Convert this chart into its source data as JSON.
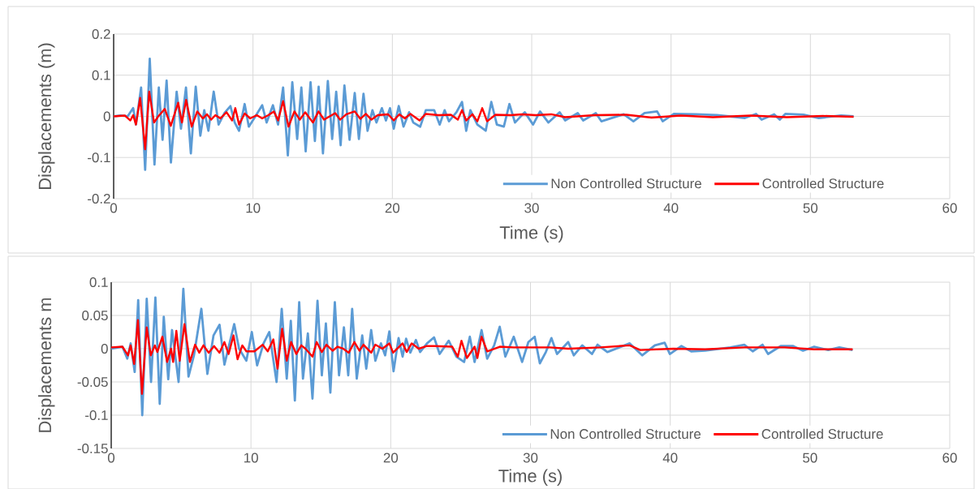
{
  "chart_data": [
    {
      "type": "line",
      "xlabel": "Time (s)",
      "ylabel": "Displacements (m)",
      "xlim": [
        0,
        60
      ],
      "ylim": [
        -0.2,
        0.2
      ],
      "xticks": [
        0,
        10,
        20,
        30,
        40,
        50,
        60
      ],
      "yticks": [
        -0.2,
        -0.1,
        0,
        0.1,
        0.2
      ],
      "grid": true,
      "legend": "bottom",
      "series": [
        {
          "name": "Non Controlled Structure",
          "color": "#5b9bd5",
          "x": [
            0,
            0.5,
            1.0,
            1.4,
            1.6,
            1.97,
            2.26,
            2.59,
            2.93,
            3.24,
            3.51,
            3.8,
            4.11,
            4.52,
            4.83,
            5.19,
            5.54,
            5.89,
            6.22,
            6.5,
            6.8,
            7.18,
            7.53,
            7.95,
            8.38,
            8.69,
            9.0,
            9.4,
            9.7,
            10.17,
            10.66,
            10.98,
            11.43,
            11.8,
            12.16,
            12.5,
            12.82,
            13.17,
            13.47,
            13.78,
            14.13,
            14.44,
            14.71,
            15.02,
            15.37,
            15.68,
            15.97,
            16.29,
            16.56,
            16.93,
            17.3,
            17.6,
            17.93,
            18.22,
            18.57,
            18.86,
            19.25,
            19.54,
            19.83,
            20.1,
            20.46,
            20.8,
            21.2,
            21.5,
            22.0,
            22.4,
            23.0,
            23.4,
            23.75,
            24.06,
            24.6,
            25.0,
            25.3,
            25.6,
            26.1,
            26.7,
            27.1,
            27.5,
            28.0,
            28.4,
            28.8,
            29.5,
            30.1,
            30.6,
            31.2,
            32.0,
            32.4,
            33.3,
            33.7,
            34.6,
            35.0,
            36.6,
            37.3,
            38.1,
            39.0,
            39.4,
            40.2,
            41.8,
            43.3,
            45.3,
            46.1,
            46.5,
            47.4,
            47.8,
            48.2,
            49.5,
            50.6,
            52.2,
            53.1
          ],
          "values": [
            0,
            0.002,
            0,
            0.02,
            -0.02,
            0.07,
            -0.13,
            0.14,
            -0.117,
            0.07,
            -0.057,
            0.087,
            -0.112,
            0.06,
            -0.03,
            0.07,
            -0.09,
            0.072,
            -0.047,
            0.015,
            -0.035,
            0.06,
            -0.02,
            0.008,
            0.025,
            -0.015,
            -0.035,
            0.03,
            -0.025,
            0,
            0.027,
            -0.015,
            0.027,
            -0.02,
            0.07,
            -0.095,
            0.083,
            -0.055,
            0.07,
            -0.085,
            0.083,
            -0.06,
            0.072,
            -0.09,
            0.086,
            -0.055,
            0.06,
            -0.07,
            0.075,
            -0.057,
            0.057,
            -0.055,
            0.055,
            -0.035,
            0.015,
            -0.015,
            0.02,
            -0.01,
            0.02,
            -0.03,
            0.025,
            -0.025,
            0.01,
            -0.015,
            -0.025,
            0.015,
            0.015,
            -0.02,
            0.015,
            -0.012,
            0.01,
            0.035,
            -0.035,
            0.015,
            -0.02,
            -0.035,
            0.035,
            -0.02,
            -0.025,
            0.03,
            -0.015,
            0.01,
            -0.02,
            0.012,
            -0.015,
            0.01,
            -0.01,
            0.008,
            -0.01,
            0.008,
            -0.012,
            0.005,
            -0.012,
            0.008,
            0.012,
            -0.012,
            0.006,
            0.005,
            0.003,
            -0.004,
            0.006,
            -0.008,
            0.005,
            -0.008,
            0.006,
            0.004,
            -0.004,
            0.002,
            0
          ]
        },
        {
          "name": "Controlled Structure",
          "color": "#ff0000",
          "x": [
            0,
            0.8,
            1.2,
            1.4,
            1.6,
            1.9,
            2.26,
            2.55,
            2.9,
            3.2,
            3.67,
            4.1,
            4.63,
            4.9,
            5.2,
            5.6,
            6.0,
            6.4,
            6.7,
            7.0,
            7.3,
            7.66,
            8.1,
            8.5,
            8.73,
            9.0,
            9.4,
            9.8,
            10.27,
            10.66,
            11.1,
            11.5,
            11.8,
            12.16,
            12.55,
            12.97,
            13.36,
            13.75,
            14.3,
            14.7,
            15.1,
            15.9,
            16.25,
            16.7,
            17.3,
            17.7,
            18.1,
            18.5,
            18.95,
            19.7,
            20.1,
            20.5,
            20.9,
            21.3,
            21.95,
            22.4,
            23.3,
            24.2,
            24.7,
            25.0,
            25.3,
            25.75,
            26.1,
            26.45,
            26.8,
            27.4,
            28.5,
            29.3,
            30.3,
            31.4,
            32.4,
            34.5,
            36.8,
            38.6,
            40.7,
            43.0,
            45.7,
            48.3,
            50.9,
            53.1
          ],
          "values": [
            0,
            0.002,
            -0.01,
            0.003,
            -0.02,
            0.045,
            -0.08,
            0.06,
            -0.015,
            0,
            0.018,
            -0.023,
            0.033,
            -0.015,
            0.04,
            -0.025,
            0.012,
            -0.005,
            0.005,
            -0.008,
            0.003,
            -0.005,
            0.01,
            -0.01,
            0.02,
            -0.02,
            0.007,
            -0.005,
            0.003,
            -0.005,
            0.003,
            0.012,
            -0.01,
            0.037,
            -0.025,
            0.012,
            -0.008,
            0.01,
            -0.015,
            0.012,
            -0.008,
            0.008,
            -0.008,
            0.005,
            0.012,
            -0.006,
            0.006,
            -0.008,
            0.003,
            0.005,
            -0.01,
            0.005,
            -0.005,
            0.006,
            -0.01,
            0.006,
            0.003,
            0.004,
            -0.008,
            0.015,
            -0.01,
            0.005,
            -0.012,
            0.02,
            -0.012,
            0.004,
            0.003,
            0.005,
            0.003,
            0.005,
            -0.002,
            0.003,
            0.004,
            -0.003,
            0.002,
            -0.002,
            0.002,
            -0.002,
            0.001,
            -0.001
          ]
        }
      ]
    },
    {
      "type": "line",
      "xlabel": "Time (s)",
      "ylabel": "Displacements m",
      "xlim": [
        0,
        60
      ],
      "ylim": [
        -0.15,
        0.1
      ],
      "xticks": [
        0,
        10,
        20,
        30,
        40,
        50,
        60
      ],
      "yticks": [
        -0.15,
        -0.1,
        -0.05,
        0,
        0.05,
        0.1
      ],
      "grid": true,
      "legend": "bottom",
      "series": [
        {
          "name": "Non Controlled Structure",
          "color": "#5b9bd5",
          "x": [
            0,
            0.8,
            1.15,
            1.39,
            1.68,
            1.93,
            2.22,
            2.54,
            2.85,
            3.16,
            3.47,
            3.76,
            4.08,
            4.35,
            4.82,
            5.16,
            5.53,
            5.92,
            6.45,
            6.88,
            7.32,
            7.75,
            8.1,
            8.8,
            9.15,
            9.67,
            10.06,
            10.44,
            10.9,
            11.31,
            11.83,
            12.2,
            12.56,
            12.85,
            13.14,
            13.45,
            13.72,
            14.07,
            14.4,
            14.76,
            15.07,
            15.36,
            15.68,
            16.0,
            16.3,
            16.65,
            16.96,
            17.24,
            17.57,
            17.96,
            18.25,
            18.6,
            18.9,
            19.3,
            19.6,
            19.9,
            20.2,
            20.56,
            20.85,
            21.1,
            21.4,
            21.8,
            22.1,
            22.6,
            23.1,
            23.5,
            24.15,
            24.7,
            25.25,
            25.66,
            26.0,
            26.5,
            26.9,
            27.4,
            27.8,
            28.2,
            28.8,
            29.4,
            29.85,
            30.3,
            30.67,
            31.1,
            31.5,
            31.9,
            32.7,
            33.1,
            33.7,
            34.4,
            34.8,
            35.5,
            37.1,
            38.0,
            38.9,
            39.6,
            39.97,
            40.8,
            41.5,
            42.5,
            44.3,
            45.3,
            45.9,
            46.6,
            47.0,
            47.9,
            48.8,
            49.5,
            50.3,
            51.3,
            52.1,
            53.05
          ],
          "values": [
            0,
            0.003,
            -0.015,
            0.008,
            -0.035,
            0.073,
            -0.1,
            0.075,
            -0.05,
            0.077,
            -0.083,
            0.048,
            -0.046,
            0.028,
            -0.05,
            0.09,
            -0.042,
            -0.01,
            0.06,
            -0.038,
            0.02,
            0.036,
            -0.024,
            0.037,
            0,
            -0.018,
            0.025,
            -0.025,
            0.008,
            0.025,
            -0.05,
            0.06,
            -0.045,
            0.042,
            -0.078,
            0.07,
            -0.045,
            0.023,
            -0.075,
            0.072,
            -0.04,
            0.038,
            -0.066,
            0.07,
            -0.04,
            0.032,
            -0.04,
            0.06,
            -0.045,
            0.02,
            -0.03,
            0.028,
            -0.018,
            0.008,
            -0.01,
            0.026,
            -0.034,
            0.016,
            -0.012,
            0.015,
            -0.006,
            0.013,
            -0.005,
            0.008,
            0.017,
            -0.008,
            0.012,
            -0.012,
            -0.02,
            0.018,
            -0.02,
            0.028,
            -0.015,
            0.005,
            0.033,
            -0.012,
            0.018,
            -0.02,
            0.01,
            0.018,
            -0.022,
            -0.005,
            0.016,
            -0.008,
            0.01,
            -0.01,
            0.005,
            -0.008,
            0.006,
            -0.005,
            0.008,
            -0.01,
            0.005,
            0.009,
            -0.008,
            0.004,
            -0.004,
            -0.003,
            0.002,
            0.006,
            -0.004,
            0.006,
            -0.008,
            0.004,
            0.004,
            -0.003,
            0.003,
            -0.002,
            0.002,
            -0.002
          ]
        },
        {
          "name": "Controlled Structure",
          "color": "#ff0000",
          "x": [
            0,
            0.8,
            1.2,
            1.39,
            1.64,
            1.91,
            2.2,
            2.54,
            2.83,
            3.12,
            3.3,
            3.66,
            4.0,
            4.28,
            4.43,
            4.66,
            4.9,
            5.24,
            5.63,
            6.0,
            6.3,
            6.6,
            6.97,
            7.36,
            7.75,
            8.1,
            8.4,
            8.75,
            9.04,
            9.38,
            9.67,
            10.25,
            10.83,
            11.2,
            11.6,
            11.9,
            12.23,
            12.56,
            12.87,
            13.24,
            13.6,
            13.9,
            14.4,
            14.7,
            15.07,
            15.4,
            15.84,
            16.2,
            16.6,
            17.0,
            17.4,
            17.76,
            18.05,
            18.6,
            18.9,
            19.4,
            19.9,
            20.17,
            20.85,
            21.14,
            21.5,
            22.0,
            22.6,
            23.1,
            24.4,
            24.8,
            25.06,
            25.45,
            26.0,
            26.2,
            26.5,
            26.9,
            27.8,
            28.8,
            30.1,
            31.4,
            32.7,
            35.0,
            37.1,
            37.85,
            40.2,
            42.5,
            45.3,
            48.2,
            50.3,
            53.05
          ],
          "values": [
            0.002,
            0.003,
            -0.01,
            0.005,
            -0.023,
            0.043,
            -0.068,
            0.032,
            -0.01,
            0.005,
            -0.005,
            0.018,
            -0.02,
            0,
            -0.02,
            0.027,
            -0.018,
            0.037,
            -0.02,
            0.006,
            -0.006,
            0.005,
            -0.006,
            0.004,
            -0.006,
            0.01,
            -0.008,
            0.02,
            -0.016,
            0.005,
            -0.004,
            -0.004,
            0.006,
            -0.004,
            0.014,
            -0.03,
            0.03,
            -0.018,
            0.01,
            -0.008,
            0.005,
            0,
            -0.012,
            0.01,
            -0.005,
            0.006,
            -0.003,
            0.003,
            0,
            -0.006,
            0.01,
            -0.003,
            0.006,
            -0.006,
            0.006,
            0,
            0.008,
            -0.006,
            0.008,
            -0.005,
            0.008,
            0,
            0.004,
            0.004,
            0.003,
            -0.012,
            0.012,
            -0.014,
            0.003,
            -0.014,
            0.018,
            -0.004,
            0.003,
            0.002,
            0.002,
            0.002,
            0,
            0.002,
            0.005,
            -0.002,
            0,
            -0.001,
            0.002,
            0.002,
            -0.001,
            -0.001
          ]
        }
      ]
    }
  ]
}
